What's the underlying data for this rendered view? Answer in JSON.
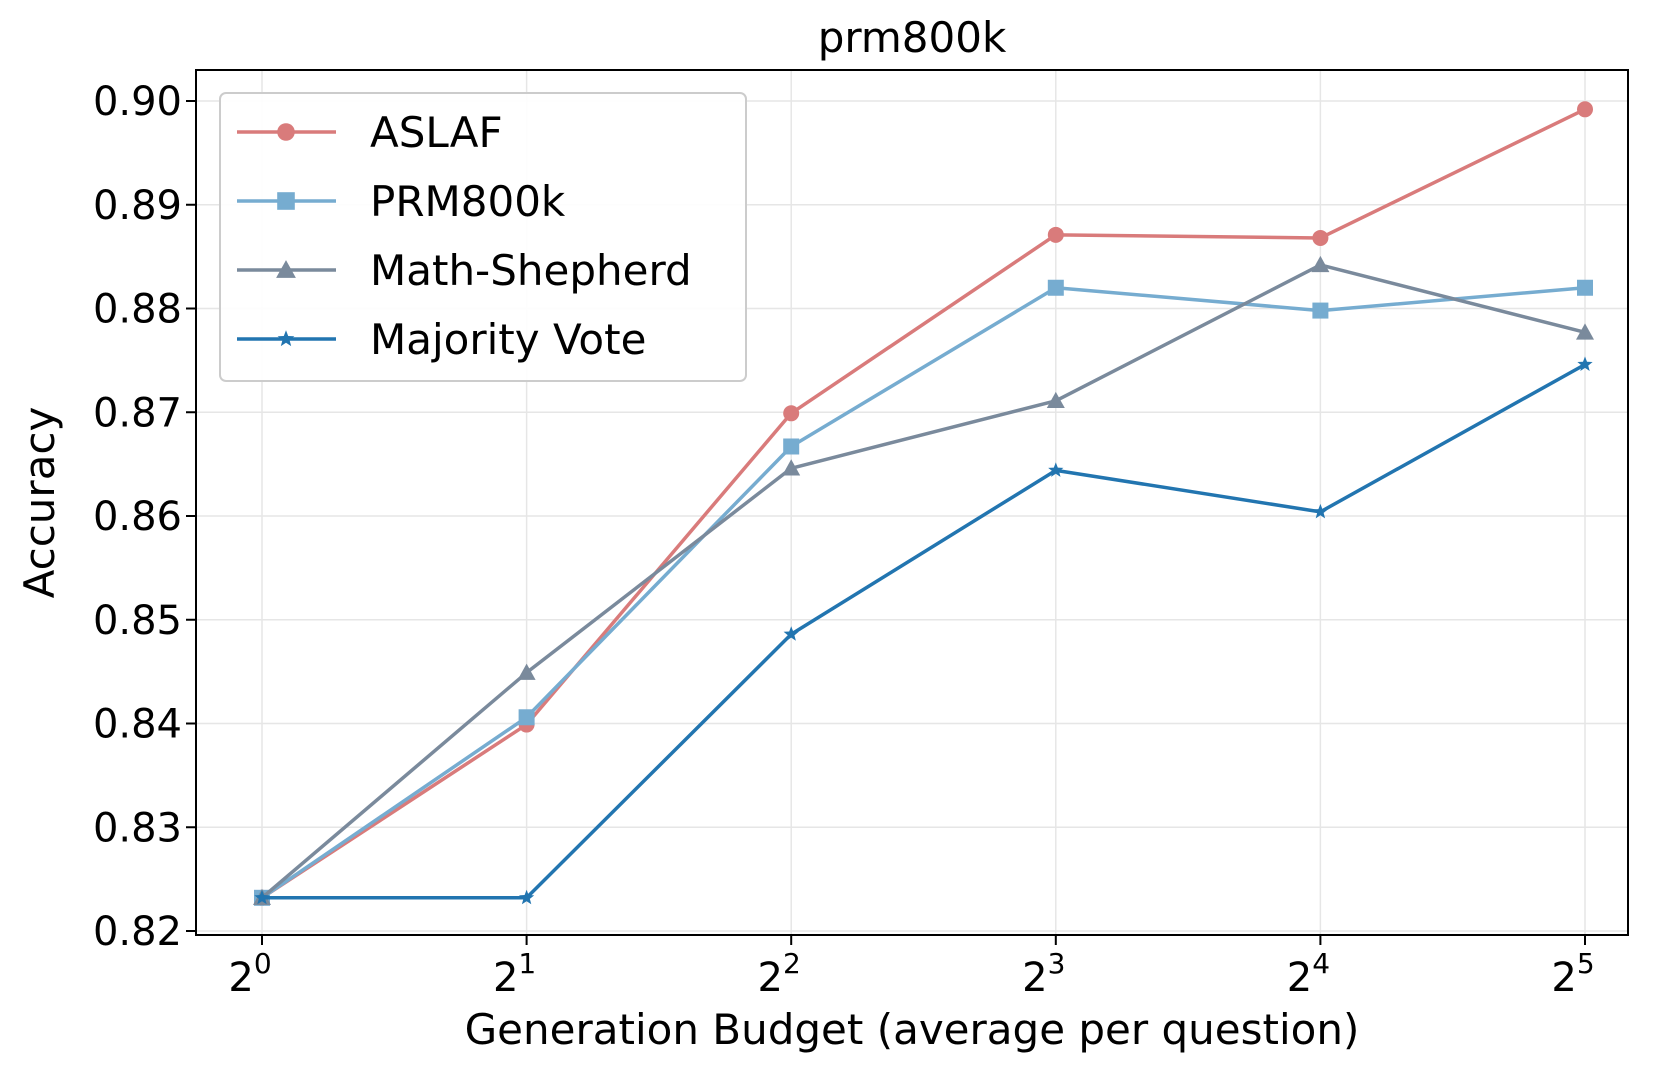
{
  "chart_data": {
    "type": "line",
    "title": "prm800k",
    "xlabel": "Generation Budget (average per question)",
    "ylabel": "Accuracy",
    "x_base": "2",
    "x_exponents": [
      "0",
      "1",
      "2",
      "3",
      "4",
      "5"
    ],
    "ylim": [
      0.82,
      0.9
    ],
    "yticks": [
      "0.82",
      "0.83",
      "0.84",
      "0.85",
      "0.86",
      "0.87",
      "0.88",
      "0.89",
      "0.90"
    ],
    "grid": true,
    "legend_position": "top-left",
    "series": [
      {
        "name": "ASLAF",
        "color": "#d97b7b",
        "marker": "circle",
        "values": [
          0.8232,
          0.8399,
          0.8699,
          0.8871,
          0.8868,
          0.8992
        ]
      },
      {
        "name": "PRM800k",
        "color": "#76acd0",
        "marker": "square",
        "values": [
          0.8232,
          0.8406,
          0.8667,
          0.882,
          0.8798,
          0.882
        ]
      },
      {
        "name": "Math-Shepherd",
        "color": "#7a8a9c",
        "marker": "triangle",
        "values": [
          0.8232,
          0.8449,
          0.8646,
          0.8711,
          0.8842,
          0.8777
        ]
      },
      {
        "name": "Majority Vote",
        "color": "#2275b0",
        "marker": "star",
        "values": [
          0.8232,
          0.8232,
          0.8486,
          0.8644,
          0.8604,
          0.8746
        ]
      }
    ]
  }
}
